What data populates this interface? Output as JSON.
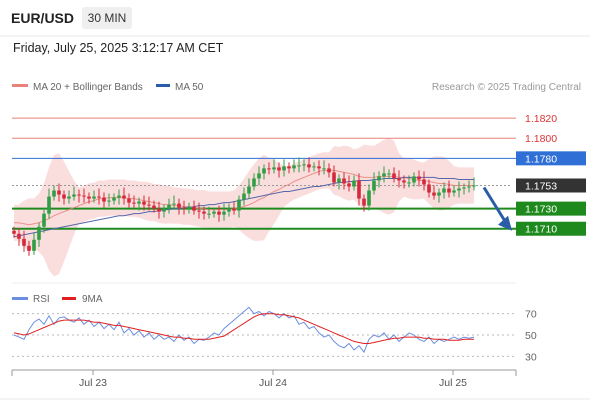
{
  "header": {
    "symbol": "EUR/USD",
    "timeframe": "30 MIN",
    "datetime": "Friday, July 25, 2025 3:12:17 AM CET"
  },
  "legend": {
    "ma20": "MA 20 + Bollinger Bands",
    "ma50": "MA 50",
    "credit": "Research © 2025 Trading Central"
  },
  "rsi_legend": {
    "rsi": "RSI",
    "ma": "9MA"
  },
  "colors": {
    "resistance": "#e8827a",
    "pivot": "#2f6fd6",
    "support": "#1e8a1e",
    "current": "#333333",
    "bull": "#2f9e44",
    "bear": "#d6283a",
    "bollinger": "#f9d6d6",
    "ma20": "#e8827a",
    "ma50": "#5566aa",
    "rsi": "#6a8fe0",
    "rsi_ma": "#e02020",
    "arrow": "#2a5da8"
  },
  "chart_data": [
    {
      "type": "line",
      "title": "",
      "ylim": [
        1.1663,
        1.184
      ],
      "x": [
        "Jul 23",
        "Jul 24",
        "Jul 25"
      ],
      "levels": [
        {
          "label": "1.1820",
          "value": 1.182,
          "role": "resistance"
        },
        {
          "label": "1.1800",
          "value": 1.18,
          "role": "resistance"
        },
        {
          "label": "1.1780",
          "value": 1.178,
          "role": "pivot"
        },
        {
          "label": "1.1753",
          "value": 1.1753,
          "role": "current"
        },
        {
          "label": "1.1730",
          "value": 1.173,
          "role": "support"
        },
        {
          "label": "1.1710",
          "value": 1.171,
          "role": "support"
        }
      ],
      "price_close": [
        1.1705,
        1.17,
        1.1693,
        1.1688,
        1.1699,
        1.1712,
        1.1725,
        1.1742,
        1.1748,
        1.1744,
        1.174,
        1.1742,
        1.1744,
        1.1743,
        1.1742,
        1.174,
        1.1742,
        1.1741,
        1.1737,
        1.1738,
        1.1741,
        1.1743,
        1.174,
        1.1736,
        1.1735,
        1.1737,
        1.1734,
        1.1733,
        1.173,
        1.1727,
        1.173,
        1.1734,
        1.1735,
        1.1731,
        1.173,
        1.1732,
        1.1728,
        1.1727,
        1.1725,
        1.1725,
        1.1727,
        1.1724,
        1.1727,
        1.173,
        1.1728,
        1.1739,
        1.1745,
        1.1752,
        1.176,
        1.1765,
        1.177,
        1.1769,
        1.1771,
        1.1768,
        1.1772,
        1.177,
        1.1773,
        1.1773,
        1.1774,
        1.1771,
        1.1772,
        1.177,
        1.177,
        1.1766,
        1.1756,
        1.176,
        1.1755,
        1.1752,
        1.1758,
        1.174,
        1.1733,
        1.1748,
        1.1758,
        1.1762,
        1.1765,
        1.1765,
        1.176,
        1.1758,
        1.1756,
        1.1756,
        1.1762,
        1.1759,
        1.1754,
        1.1746,
        1.1743,
        1.1746,
        1.175,
        1.1746,
        1.1748,
        1.175,
        1.1751,
        1.1752,
        1.1753
      ],
      "ma20": [
        1.1716,
        1.1716,
        1.1715,
        1.1714,
        1.1715,
        1.1716,
        1.1718,
        1.172,
        1.1723,
        1.1725,
        1.1727,
        1.1729,
        1.1731,
        1.1733,
        1.1735,
        1.1737,
        1.1738,
        1.174,
        1.174,
        1.1741,
        1.1741,
        1.1741,
        1.1741,
        1.174,
        1.174,
        1.1739,
        1.1738,
        1.1737,
        1.1736,
        1.1735,
        1.1734,
        1.1734,
        1.1733,
        1.1733,
        1.1732,
        1.1732,
        1.1731,
        1.173,
        1.173,
        1.1729,
        1.1729,
        1.1729,
        1.1729,
        1.1729,
        1.173,
        1.1731,
        1.1732,
        1.1734,
        1.1736,
        1.1739,
        1.1741,
        1.1744,
        1.1747,
        1.1749,
        1.1752,
        1.1754,
        1.1757,
        1.1759,
        1.1761,
        1.1763,
        1.1765,
        1.1767,
        1.1768,
        1.1768,
        1.1768,
        1.1767,
        1.1766,
        1.1765,
        1.1764,
        1.1762,
        1.1761,
        1.1761,
        1.1761,
        1.1762,
        1.1762,
        1.1762,
        1.1762,
        1.1761,
        1.1761,
        1.176,
        1.1759,
        1.1758,
        1.1758,
        1.1757,
        1.1756,
        1.1755,
        1.1755,
        1.1754,
        1.1753,
        1.1753,
        1.1753,
        1.1753,
        1.1753
      ],
      "ma50": [
        1.1702,
        1.1703,
        1.1704,
        1.1705,
        1.1706,
        1.1707,
        1.1708,
        1.1709,
        1.171,
        1.1711,
        1.1712,
        1.1713,
        1.1714,
        1.1715,
        1.1716,
        1.1717,
        1.1718,
        1.1719,
        1.172,
        1.1721,
        1.1722,
        1.1723,
        1.1723,
        1.1724,
        1.1725,
        1.1725,
        1.1726,
        1.1727,
        1.1727,
        1.1728,
        1.1729,
        1.1729,
        1.173,
        1.173,
        1.1731,
        1.1731,
        1.1732,
        1.1733,
        1.1733,
        1.1734,
        1.1734,
        1.1735,
        1.1736,
        1.1736,
        1.1737,
        1.1738,
        1.1739,
        1.174,
        1.1741,
        1.1742,
        1.1743,
        1.1744,
        1.1745,
        1.1746,
        1.1747,
        1.1747,
        1.1748,
        1.1749,
        1.175,
        1.1751,
        1.1752,
        1.1752,
        1.1753,
        1.1754,
        1.1755,
        1.1756,
        1.1756,
        1.1757,
        1.1757,
        1.1758,
        1.1758,
        1.1758,
        1.1759,
        1.1759,
        1.176,
        1.176,
        1.176,
        1.176,
        1.1761,
        1.1761,
        1.1761,
        1.1761,
        1.1761,
        1.1761,
        1.1761,
        1.176,
        1.176,
        1.176,
        1.176,
        1.1759,
        1.1759,
        1.1759,
        1.1759
      ],
      "forecast_target": 1.171
    },
    {
      "type": "line",
      "title": "",
      "ylim": [
        20,
        80
      ],
      "yticks": [
        "70",
        "50",
        "30"
      ],
      "series": [
        {
          "name": "RSI",
          "values": [
            50,
            48,
            46,
            55,
            62,
            65,
            60,
            68,
            60,
            66,
            67,
            64,
            62,
            66,
            60,
            64,
            58,
            62,
            56,
            60,
            55,
            62,
            52,
            56,
            50,
            54,
            48,
            52,
            46,
            50,
            46,
            48,
            44,
            50,
            45,
            48,
            42,
            46,
            45,
            48,
            52,
            50,
            56,
            60,
            64,
            68,
            72,
            76,
            70,
            72,
            68,
            72,
            70,
            66,
            70,
            66,
            68,
            60,
            62,
            56,
            58,
            52,
            48,
            50,
            44,
            40,
            38,
            42,
            36,
            40,
            34,
            46,
            50,
            48,
            52,
            46,
            50,
            44,
            48,
            52,
            50,
            46,
            44,
            48,
            42,
            46,
            44,
            46,
            48,
            46,
            48,
            47,
            48
          ]
        },
        {
          "name": "9MA",
          "values": [
            52,
            51,
            50,
            51,
            53,
            55,
            57,
            59,
            61,
            63,
            64,
            64,
            64,
            64,
            64,
            63,
            62,
            62,
            61,
            60,
            59,
            59,
            58,
            57,
            56,
            55,
            54,
            53,
            52,
            51,
            50,
            49,
            48,
            48,
            47,
            47,
            46,
            46,
            46,
            46,
            47,
            48,
            49,
            52,
            55,
            58,
            61,
            64,
            67,
            69,
            70,
            70,
            70,
            69,
            69,
            68,
            67,
            66,
            64,
            62,
            60,
            58,
            56,
            54,
            52,
            50,
            48,
            46,
            44,
            43,
            42,
            42,
            43,
            44,
            45,
            46,
            47,
            47,
            48,
            48,
            48,
            48,
            47,
            47,
            46,
            46,
            46,
            45,
            45,
            45,
            46,
            46,
            46
          ]
        }
      ]
    }
  ]
}
